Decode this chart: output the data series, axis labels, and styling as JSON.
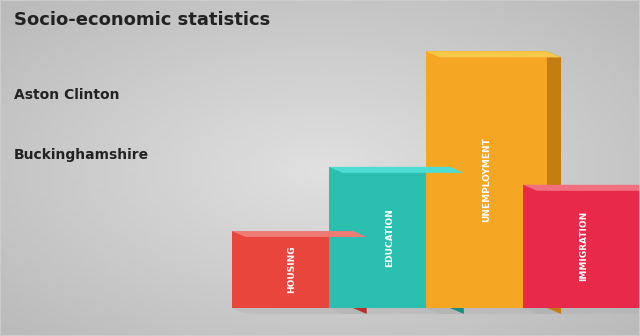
{
  "title_line1": "Socio-economic statistics",
  "title_line2": "Aston Clinton",
  "title_line3": "Buckinghamshire",
  "categories": [
    "HOUSING",
    "EDUCATION",
    "UNEMPLOYMENT",
    "IMMIGRATION"
  ],
  "values": [
    0.3,
    0.55,
    1.0,
    0.48
  ],
  "bar_colors_front": [
    "#E8453C",
    "#2BBFB0",
    "#F5A623",
    "#E8294A"
  ],
  "bar_colors_side": [
    "#B83028",
    "#1A8C82",
    "#C47D10",
    "#B81F38"
  ],
  "bar_colors_top": [
    "#F07B74",
    "#4DDDD2",
    "#F8C84A",
    "#F07080"
  ],
  "shadow_color": "#C8C8C8",
  "background_color": "#CCCCCC",
  "title_color": "#222222",
  "label_color": "#FFFFFF",
  "figsize": [
    6.4,
    3.36
  ],
  "dpi": 100
}
